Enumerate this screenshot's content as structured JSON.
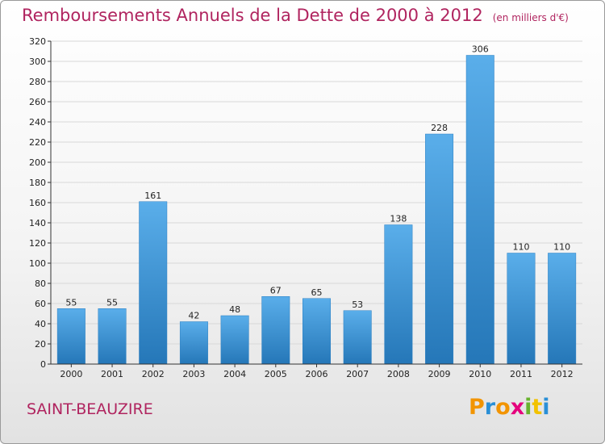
{
  "title": "Remboursements Annuels de la Dette de 2000 à 2012",
  "unit_label": "(en milliers d'€)",
  "commune": "SAINT-BEAUZIRE",
  "logo": {
    "letters": [
      "P",
      "r",
      "o",
      "x",
      "i",
      "t",
      "i"
    ],
    "colors": [
      "#f29400",
      "#2a8fd6",
      "#f29400",
      "#e5007d",
      "#68b32e",
      "#f2c200",
      "#2a8fd6"
    ]
  },
  "chart_data": {
    "type": "bar",
    "title": "Remboursements Annuels de la Dette de 2000 à 2012",
    "categories": [
      "2000",
      "2001",
      "2002",
      "2003",
      "2004",
      "2005",
      "2006",
      "2007",
      "2008",
      "2009",
      "2010",
      "2011",
      "2012"
    ],
    "values": [
      55,
      55,
      161,
      42,
      48,
      67,
      65,
      53,
      138,
      228,
      306,
      110,
      110
    ],
    "ylim": [
      0,
      320
    ],
    "yticks": [
      0,
      20,
      40,
      60,
      80,
      100,
      120,
      140,
      160,
      180,
      200,
      220,
      240,
      260,
      280,
      300,
      320
    ],
    "grid": true,
    "bar_color": "#3e98dc"
  }
}
